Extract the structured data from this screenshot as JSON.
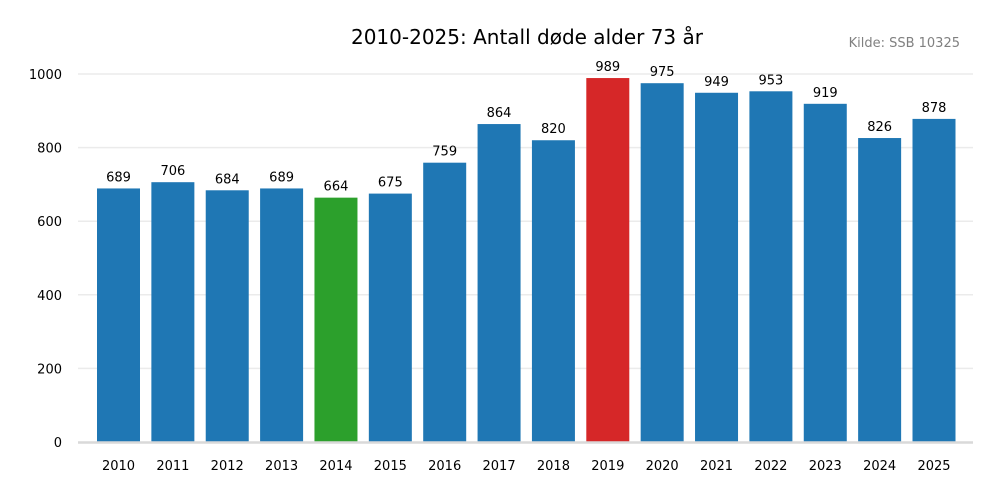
{
  "chart_data": {
    "type": "bar",
    "title": "2010-2025: Antall døde alder 73 år",
    "source": "Kilde: SSB 10325",
    "xlabel": "",
    "ylabel": "",
    "categories": [
      "2010",
      "2011",
      "2012",
      "2013",
      "2014",
      "2015",
      "2016",
      "2017",
      "2018",
      "2019",
      "2020",
      "2021",
      "2022",
      "2023",
      "2024",
      "2025"
    ],
    "values": [
      689,
      706,
      684,
      689,
      664,
      675,
      759,
      864,
      820,
      989,
      975,
      949,
      953,
      919,
      826,
      878
    ],
    "highlight": {
      "2014": "#2ca02c",
      "2019": "#d62728"
    },
    "default_color": "#1f77b4",
    "ylim": [
      0,
      1000
    ],
    "yticks": [
      0,
      200,
      400,
      600,
      800,
      1000
    ],
    "grid": true,
    "legend": "none"
  }
}
